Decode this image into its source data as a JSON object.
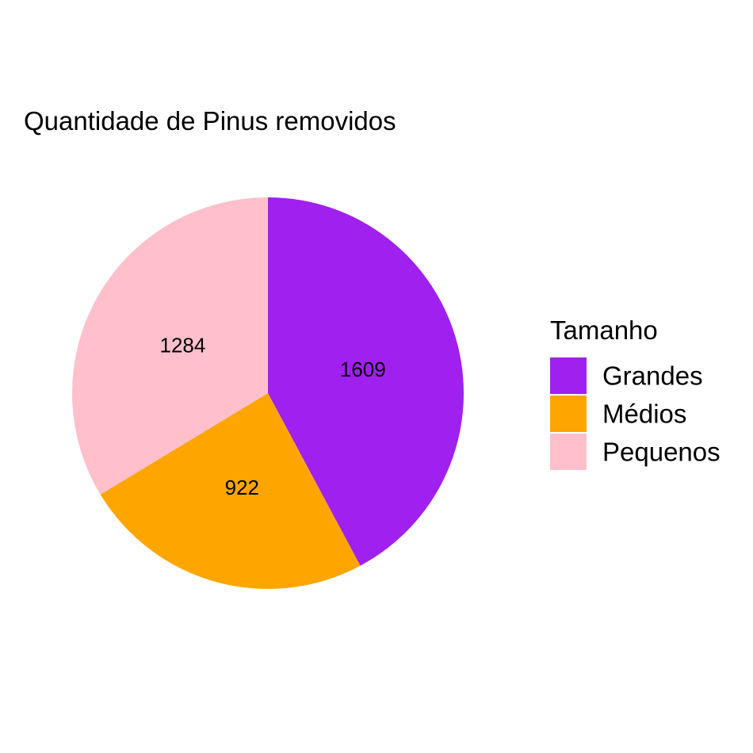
{
  "chart_data": {
    "type": "pie",
    "title": "Quantidade de Pinus removidos",
    "legend": {
      "title": "Tamanho",
      "position": "right"
    },
    "slices": [
      {
        "label": "Grandes",
        "value": 1609,
        "value_label": "1609",
        "color": "#A020F0"
      },
      {
        "label": "Médios",
        "value": 922,
        "value_label": "922",
        "color": "#FFA500"
      },
      {
        "label": "Pequenos",
        "value": 1284,
        "value_label": "1284",
        "color": "#FFC0CB"
      }
    ],
    "start_angle": "12 o'clock",
    "direction": "clockwise"
  }
}
